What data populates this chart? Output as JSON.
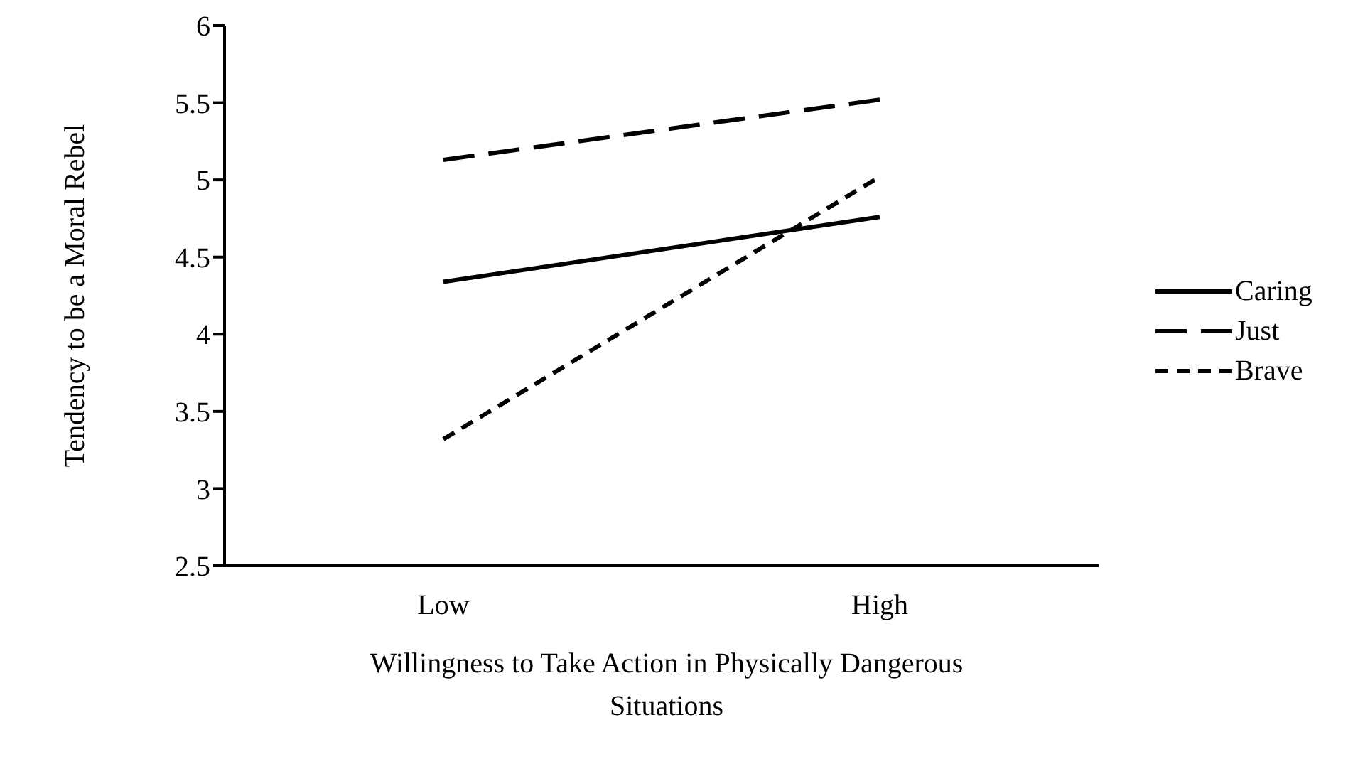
{
  "chart_data": {
    "type": "line",
    "xlabel": "Willingness to Take Action in Physically Dangerous Situations",
    "ylabel": "Tendency to be a Moral Rebel",
    "categories": [
      "Low",
      "High"
    ],
    "series": [
      {
        "name": "Caring",
        "color": "#000000",
        "values": [
          4.34,
          4.76
        ],
        "line_style": "solid"
      },
      {
        "name": "Just",
        "color": "#000000",
        "values": [
          5.13,
          5.52
        ],
        "line_style": "dashed"
      },
      {
        "name": "Brave",
        "color": "#000000",
        "values": [
          3.32,
          5.02
        ],
        "line_style": "dotted"
      }
    ],
    "ylim": [
      2.5,
      6
    ],
    "yticks": [
      2.5,
      3,
      3.5,
      4,
      4.5,
      5,
      5.5,
      6
    ],
    "grid": false,
    "legend": "right",
    "marker": "none"
  }
}
